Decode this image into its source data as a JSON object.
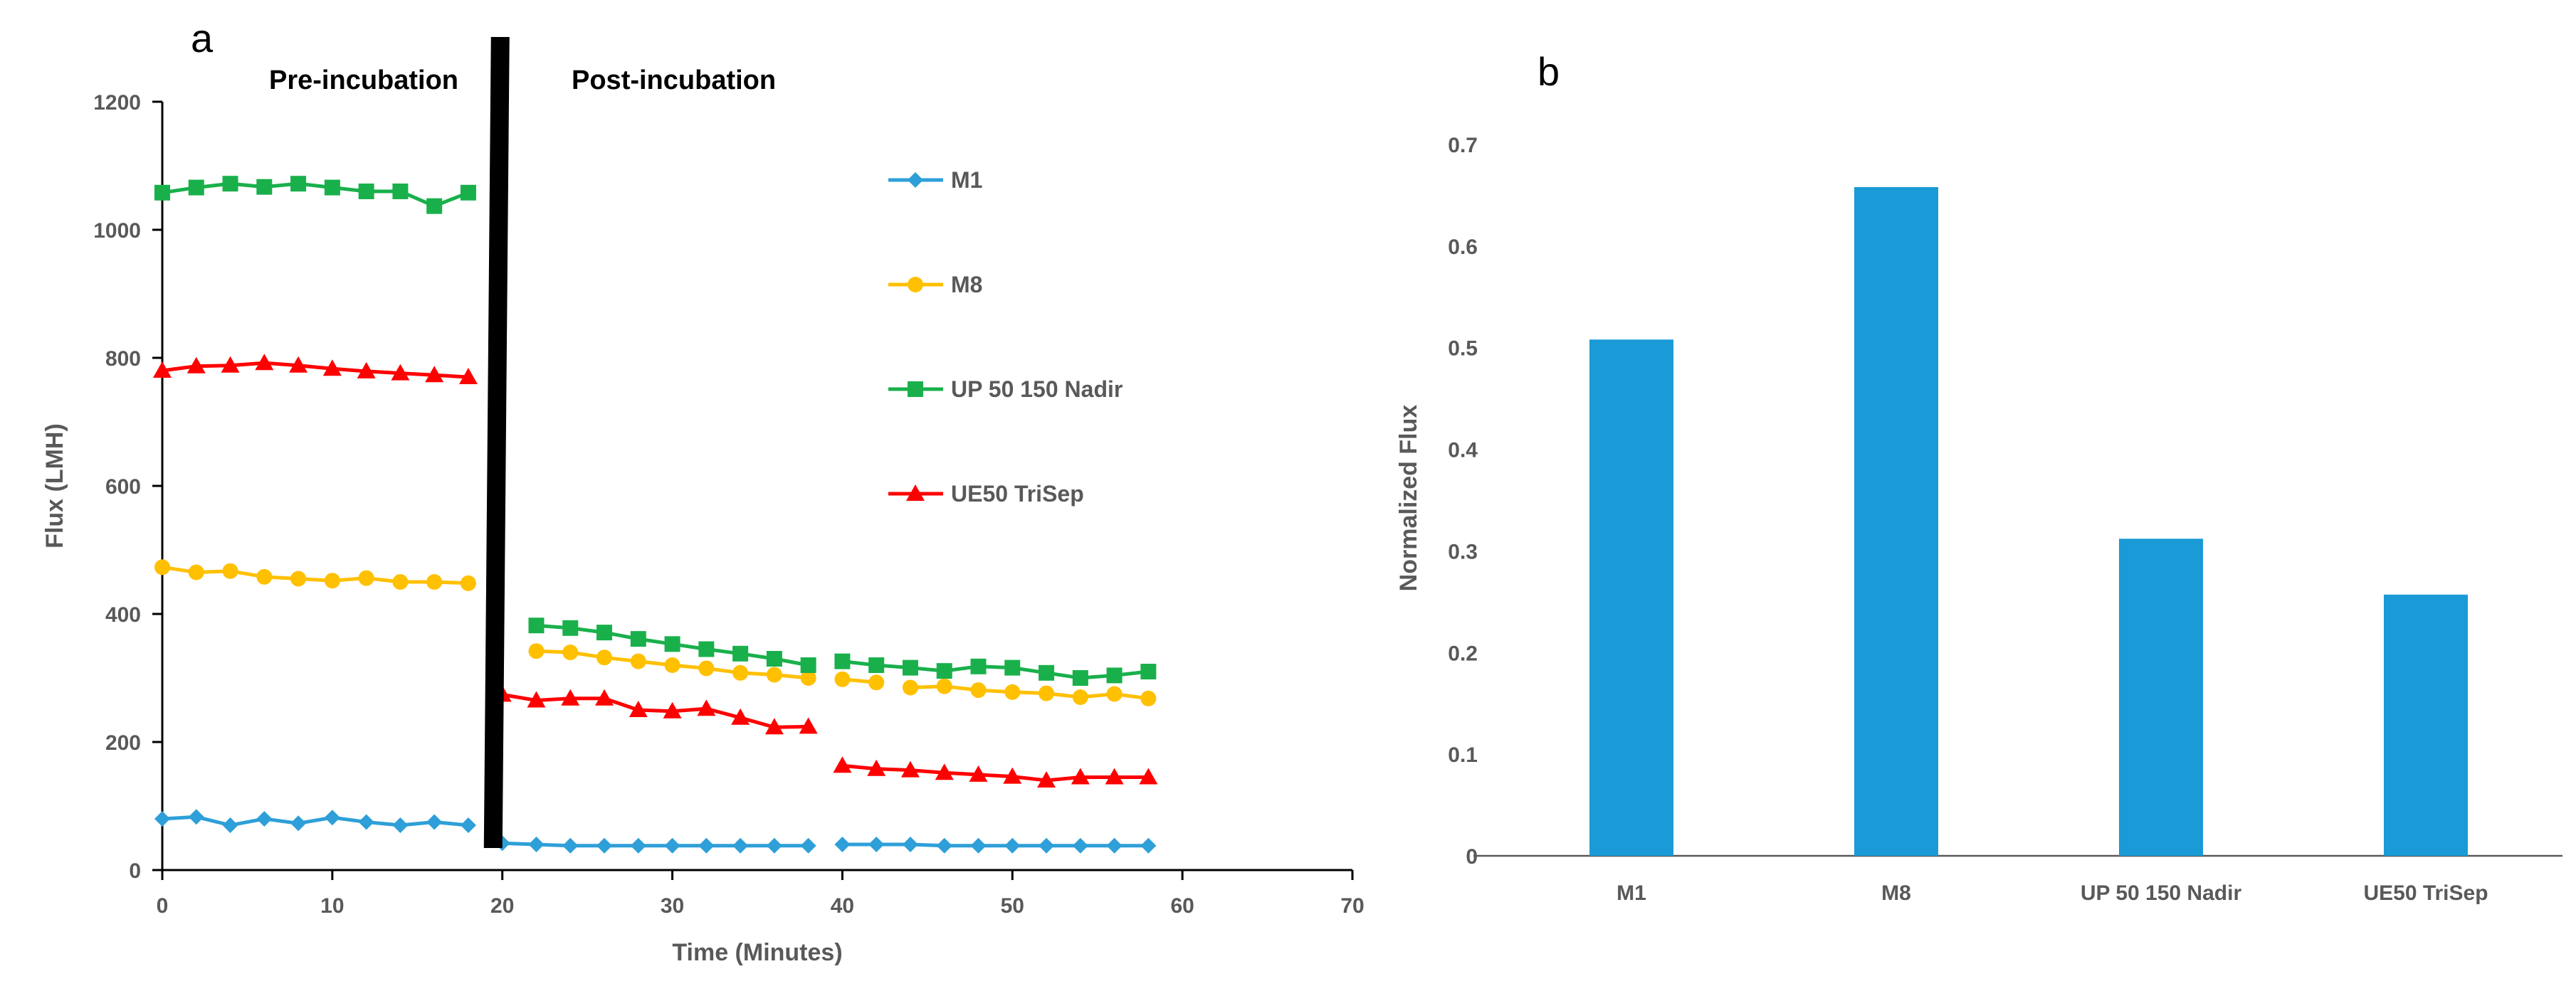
{
  "chart_data": [
    {
      "panel": "a",
      "type": "line",
      "xlabel": "Time (Minutes)",
      "ylabel": "Flux (LMH)",
      "xlim": [
        0,
        70
      ],
      "ylim": [
        0,
        1200
      ],
      "xticks": [
        0,
        10,
        20,
        30,
        40,
        50,
        60,
        70
      ],
      "yticks": [
        0,
        200,
        400,
        600,
        800,
        1000,
        1200
      ],
      "annotations": [
        "Pre-incubation",
        "Post-incubation"
      ],
      "divider_x": 19.5,
      "legend_position": "right",
      "series": [
        {
          "name": "M1",
          "color": "#2e9fd8",
          "marker": "diamond",
          "segments": [
            {
              "x": [
                0,
                2,
                4,
                6,
                8,
                10,
                12,
                14,
                16,
                18
              ],
              "y": [
                80,
                83,
                70,
                80,
                73,
                82,
                75,
                70,
                75,
                70
              ]
            },
            {
              "x": [
                20,
                22,
                24,
                26,
                28,
                30,
                32,
                34,
                36,
                38
              ],
              "y": [
                42,
                40,
                38,
                38,
                38,
                38,
                38,
                38,
                38,
                38
              ]
            },
            {
              "x": [
                40,
                42,
                44,
                46,
                48,
                50,
                52,
                54,
                56,
                58
              ],
              "y": [
                40,
                40,
                40,
                38,
                38,
                38,
                38,
                38,
                38,
                38
              ]
            }
          ]
        },
        {
          "name": "M8",
          "color": "#ffc000",
          "marker": "circle",
          "segments": [
            {
              "x": [
                0,
                2,
                4,
                6,
                8,
                10,
                12,
                14,
                16,
                18
              ],
              "y": [
                473,
                465,
                467,
                458,
                455,
                452,
                456,
                450,
                450,
                448
              ]
            },
            {
              "x": [
                22,
                24,
                26,
                28,
                30,
                32,
                34,
                36,
                38
              ],
              "y": [
                342,
                340,
                332,
                326,
                320,
                315,
                308,
                305,
                300
              ]
            },
            {
              "x": [
                40,
                42
              ],
              "y": [
                298,
                293
              ]
            },
            {
              "x": [
                44,
                46,
                48,
                50,
                52,
                54,
                56,
                58
              ],
              "y": [
                285,
                287,
                281,
                278,
                276,
                270,
                275,
                268
              ]
            }
          ]
        },
        {
          "name": "UP 50 150 Nadir",
          "color": "#19b04b",
          "marker": "square",
          "segments": [
            {
              "x": [
                0,
                2,
                4,
                6,
                8,
                10,
                12,
                14,
                16,
                18
              ],
              "y": [
                1058,
                1066,
                1072,
                1067,
                1072,
                1066,
                1060,
                1060,
                1037,
                1058
              ]
            },
            {
              "x": [
                22,
                24,
                26,
                28,
                30,
                32,
                34,
                36,
                38
              ],
              "y": [
                382,
                378,
                371,
                361,
                353,
                345,
                338,
                330,
                320
              ]
            },
            {
              "x": [
                40,
                42,
                44,
                46,
                48,
                50,
                52,
                54,
                56,
                58
              ],
              "y": [
                326,
                320,
                316,
                311,
                318,
                316,
                308,
                300,
                304,
                310
              ]
            }
          ]
        },
        {
          "name": "UE50 TriSep",
          "color": "#ff0000",
          "marker": "triangle",
          "segments": [
            {
              "x": [
                0,
                2,
                4,
                6,
                8,
                10,
                12,
                14,
                16,
                18
              ],
              "y": [
                780,
                787,
                788,
                792,
                788,
                783,
                779,
                776,
                773,
                770
              ]
            },
            {
              "x": [
                20,
                22,
                24,
                26,
                28,
                30,
                32,
                34,
                36,
                38
              ],
              "y": [
                274,
                265,
                268,
                268,
                250,
                248,
                252,
                238,
                223,
                224
              ]
            },
            {
              "x": [
                40,
                42,
                44,
                46,
                48,
                50,
                52,
                54,
                56,
                58
              ],
              "y": [
                163,
                158,
                156,
                152,
                149,
                146,
                140,
                145,
                145,
                145
              ]
            }
          ]
        }
      ]
    },
    {
      "panel": "b",
      "type": "bar",
      "xlabel": "",
      "ylabel": "Normalized Flux",
      "ylim": [
        0,
        0.7
      ],
      "yticks": [
        "0",
        "0.1",
        "0.2",
        "0.3",
        "0.4",
        "0.5",
        "0.6",
        "0.7"
      ],
      "categories": [
        "M1",
        "M8",
        "UP 50 150 Nadir",
        "UE50 TriSep"
      ],
      "values": [
        0.508,
        0.658,
        0.312,
        0.257
      ],
      "color": "#1a9ad6"
    }
  ]
}
